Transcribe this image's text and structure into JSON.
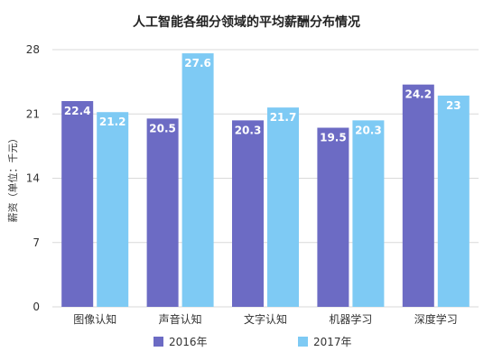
{
  "chart_data": {
    "type": "bar",
    "title": "人工智能各细分领域的平均薪酬分布情况",
    "ylabel": "薪资（单位：千元）",
    "xlabel": "",
    "categories": [
      "图像认知",
      "声音认知",
      "文字认知",
      "机器学习",
      "深度学习"
    ],
    "series": [
      {
        "name": "2016年",
        "values": [
          22.4,
          20.5,
          20.3,
          19.5,
          24.2
        ],
        "color": "#6c6bc4"
      },
      {
        "name": "2017年",
        "values": [
          21.2,
          27.6,
          21.7,
          20.3,
          23
        ],
        "color": "#7ecaf4"
      }
    ],
    "value_labels": [
      [
        "22.4",
        "20.5",
        "20.3",
        "19.5",
        "24.2"
      ],
      [
        "21.2",
        "27.6",
        "21.7",
        "20.3",
        "23"
      ]
    ],
    "y_ticks": [
      0,
      7,
      14,
      21,
      28
    ],
    "y_tick_labels": [
      "0",
      "7",
      "14",
      "21",
      "28"
    ],
    "ylim": [
      0,
      28
    ],
    "grid": true,
    "legend_position": "bottom"
  }
}
